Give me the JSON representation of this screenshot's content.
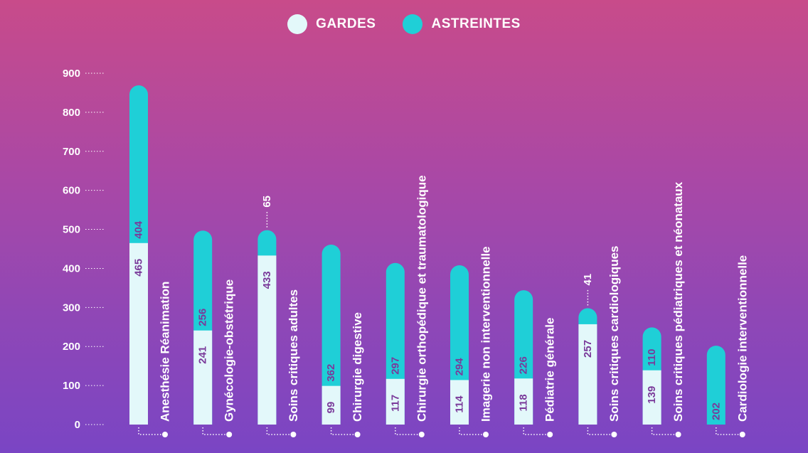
{
  "chart_data": {
    "type": "bar",
    "stacked": true,
    "orientation": "vertical",
    "title": "",
    "xlabel": "",
    "ylabel": "",
    "ylim": [
      0,
      900
    ],
    "yticks": [
      0,
      100,
      200,
      300,
      400,
      500,
      600,
      700,
      800,
      900
    ],
    "legend_position": "top-center",
    "categories": [
      "Anesthésie Réanimation",
      "Gynécologie-obstétrique",
      "Soins critiques adultes",
      "Chirurgie digestive",
      "Chirurgie orthopédique et traumatologique",
      "Imagerie non interventionnelle",
      "Pédiatrie générale",
      "Soins critiques cardiologiques",
      "Soins critiques pédiatriques et néonataux",
      "Cardiologie interventionnelle"
    ],
    "series": [
      {
        "name": "GARDES",
        "color": "#e3f8fa",
        "values": [
          465,
          241,
          433,
          99,
          117,
          114,
          118,
          257,
          139,
          0
        ]
      },
      {
        "name": "ASTREINTES",
        "color": "#1fcfd7",
        "values": [
          404,
          256,
          65,
          362,
          297,
          294,
          226,
          41,
          110,
          202
        ]
      }
    ]
  },
  "colors": {
    "label_text": "#7a3a9a",
    "axis_text": "#ffffff"
  }
}
